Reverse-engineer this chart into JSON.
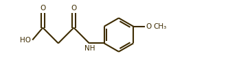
{
  "line_color": "#3d2b00",
  "line_width": 1.5,
  "bg_color": "#ffffff",
  "text_color": "#3d2b00",
  "font_size": 7.5,
  "figsize": [
    3.32,
    1.07
  ],
  "dpi": 100,
  "xlim": [
    -0.5,
    10.5
  ],
  "ylim": [
    0.0,
    3.2
  ]
}
